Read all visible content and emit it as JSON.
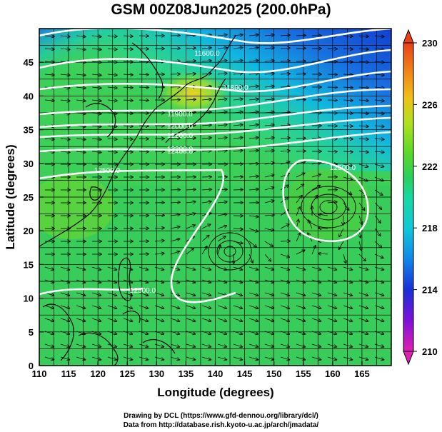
{
  "title": "GSM 00Z08Jun2025 (200.0hPa)",
  "xaxis": {
    "label": "Longitude (degrees)",
    "ticks": [
      "110",
      "115",
      "120",
      "125",
      "130",
      "135",
      "140",
      "145",
      "150",
      "155",
      "160",
      "165"
    ],
    "range": [
      110,
      170
    ]
  },
  "yaxis": {
    "label": "Latitude (degrees)",
    "ticks": [
      "0",
      "5",
      "10",
      "15",
      "20",
      "25",
      "30",
      "35",
      "40",
      "45"
    ],
    "range": [
      0,
      50
    ]
  },
  "colorbar": {
    "min": 210,
    "max": 230,
    "ticks": [
      "210",
      "214",
      "218",
      "222",
      "226",
      "230"
    ],
    "colors": [
      "#e020b0",
      "#8010d8",
      "#1830d8",
      "#1088e8",
      "#10c8d8",
      "#18d8a0",
      "#28d060",
      "#58d828",
      "#b0e020",
      "#f0c018",
      "#f08a18",
      "#e84018"
    ]
  },
  "contour_labels": [
    "11600.0",
    "11800.0",
    "11900.0",
    "12000.0",
    "12200.0",
    "12300.0",
    "12400.0",
    "12500.0",
    "12500.0",
    "12500.0"
  ],
  "credits": [
    "Drawing by DCL (https://www.gfd-dennou.org/library/dcl/)",
    "Data from http://database.rish.kyoto-u.ac.jp/arch/jmadata/"
  ]
}
